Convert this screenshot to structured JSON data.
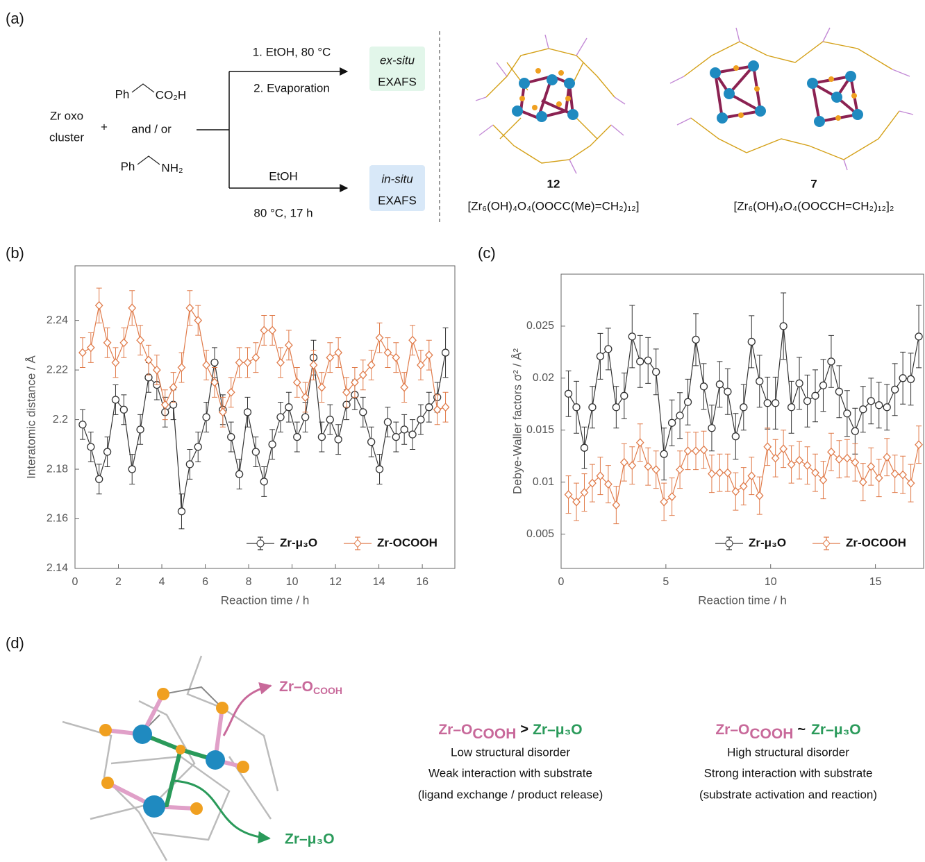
{
  "panel_a": {
    "label": "(a)",
    "cluster": [
      "Zr oxo",
      "cluster"
    ],
    "plus": "+",
    "acid": {
      "ph": "Ph",
      "group": "CO₂H"
    },
    "and_or": "and / or",
    "amine": {
      "ph": "Ph",
      "group": "NH₂"
    },
    "ex_situ": {
      "conditions": [
        "1. EtOH, 80 °C",
        "2. Evaporation"
      ],
      "method": "ex-situ",
      "technique": "EXAFS"
    },
    "in_situ": {
      "conditions": [
        "EtOH",
        "80 °C, 17 h"
      ],
      "method": "in-situ",
      "technique": "EXAFS"
    },
    "compounds": [
      {
        "number": "12",
        "formula": "[Zr₆(OH)₄O₄(OOCC(Me)=CH₂)₁₂]"
      },
      {
        "number": "7",
        "formula": "[Zr₆(OH)₄O₄(OOCCH=CH₂)₁₂]₂"
      }
    ]
  },
  "chart_data": [
    {
      "type": "line",
      "label": "(b)",
      "xlabel": "Reaction time / h",
      "ylabel": "Interatomic distance / Å",
      "xlim": [
        0,
        17.5
      ],
      "ylim": [
        2.14,
        2.262
      ],
      "xticks": [
        0,
        2,
        4,
        6,
        8,
        10,
        12,
        14,
        16
      ],
      "yticks": [
        2.14,
        2.16,
        2.18,
        2.2,
        2.22,
        2.24
      ],
      "legend": "lower right",
      "grid": false,
      "x": [
        0.35,
        0.73,
        1.11,
        1.49,
        1.87,
        2.25,
        2.63,
        3.01,
        3.39,
        3.77,
        4.15,
        4.53,
        4.91,
        5.29,
        5.67,
        6.05,
        6.43,
        6.81,
        7.19,
        7.57,
        7.95,
        8.33,
        8.71,
        9.09,
        9.47,
        9.85,
        10.23,
        10.61,
        10.99,
        11.37,
        11.75,
        12.13,
        12.51,
        12.89,
        13.27,
        13.65,
        14.03,
        14.41,
        14.79,
        15.17,
        15.55,
        15.93,
        16.31,
        16.69,
        17.07
      ],
      "series": [
        {
          "name": "Zr-μ₃O",
          "color": "#333333",
          "marker": "circle",
          "values": [
            2.198,
            2.189,
            2.176,
            2.187,
            2.208,
            2.204,
            2.18,
            2.196,
            2.217,
            2.214,
            2.203,
            2.206,
            2.163,
            2.182,
            2.189,
            2.201,
            2.223,
            2.204,
            2.193,
            2.178,
            2.203,
            2.187,
            2.175,
            2.19,
            2.201,
            2.205,
            2.193,
            2.201,
            2.225,
            2.193,
            2.2,
            2.192,
            2.206,
            2.21,
            2.203,
            2.191,
            2.18,
            2.199,
            2.193,
            2.196,
            2.194,
            2.2,
            2.205,
            2.209,
            2.227
          ],
          "errors": [
            0.006,
            0.006,
            0.006,
            0.006,
            0.006,
            0.006,
            0.006,
            0.006,
            0.006,
            0.006,
            0.006,
            0.006,
            0.007,
            0.006,
            0.006,
            0.006,
            0.006,
            0.006,
            0.006,
            0.006,
            0.006,
            0.006,
            0.006,
            0.006,
            0.006,
            0.006,
            0.006,
            0.006,
            0.007,
            0.006,
            0.006,
            0.006,
            0.006,
            0.006,
            0.006,
            0.006,
            0.006,
            0.006,
            0.006,
            0.006,
            0.006,
            0.006,
            0.006,
            0.006,
            0.01
          ]
        },
        {
          "name": "Zr-OCOOH",
          "color": "#e07b4a",
          "marker": "diamond",
          "values": [
            2.227,
            2.229,
            2.246,
            2.231,
            2.223,
            2.231,
            2.245,
            2.232,
            2.224,
            2.22,
            2.206,
            2.213,
            2.221,
            2.245,
            2.24,
            2.222,
            2.215,
            2.203,
            2.211,
            2.223,
            2.223,
            2.225,
            2.236,
            2.236,
            2.223,
            2.23,
            2.215,
            2.209,
            2.222,
            2.213,
            2.225,
            2.227,
            2.211,
            2.215,
            2.218,
            2.222,
            2.233,
            2.227,
            2.225,
            2.213,
            2.232,
            2.222,
            2.226,
            2.204,
            2.205
          ],
          "errors": [
            0.006,
            0.006,
            0.007,
            0.006,
            0.006,
            0.006,
            0.007,
            0.006,
            0.006,
            0.006,
            0.006,
            0.006,
            0.006,
            0.007,
            0.006,
            0.006,
            0.006,
            0.006,
            0.006,
            0.006,
            0.006,
            0.006,
            0.006,
            0.006,
            0.006,
            0.006,
            0.006,
            0.006,
            0.006,
            0.006,
            0.006,
            0.006,
            0.006,
            0.006,
            0.006,
            0.006,
            0.006,
            0.006,
            0.006,
            0.006,
            0.006,
            0.006,
            0.006,
            0.006,
            0.006
          ]
        }
      ]
    },
    {
      "type": "line",
      "label": "(c)",
      "xlabel": "Reaction time / h",
      "ylabel": "Debye-Waller factors σ² / Å²",
      "xlim": [
        0,
        17.3
      ],
      "ylim": [
        0.0017,
        0.03
      ],
      "xticks": [
        0,
        5,
        10,
        15
      ],
      "yticks": [
        0.005,
        0.01,
        0.015,
        0.02,
        0.025
      ],
      "legend": "lower right",
      "grid": false,
      "x": [
        0.35,
        0.73,
        1.11,
        1.49,
        1.87,
        2.25,
        2.63,
        3.01,
        3.39,
        3.77,
        4.15,
        4.53,
        4.91,
        5.29,
        5.67,
        6.05,
        6.43,
        6.81,
        7.19,
        7.57,
        7.95,
        8.33,
        8.71,
        9.09,
        9.47,
        9.85,
        10.23,
        10.61,
        10.99,
        11.37,
        11.75,
        12.13,
        12.51,
        12.89,
        13.27,
        13.65,
        14.03,
        14.41,
        14.79,
        15.17,
        15.55,
        15.93,
        16.31,
        16.69,
        17.07
      ],
      "series": [
        {
          "name": "Zr-μ₃O",
          "color": "#333333",
          "marker": "circle",
          "values": [
            0.0185,
            0.0172,
            0.0133,
            0.0172,
            0.0221,
            0.0228,
            0.0172,
            0.0183,
            0.024,
            0.0216,
            0.0217,
            0.0206,
            0.0127,
            0.0157,
            0.0164,
            0.0177,
            0.0237,
            0.0192,
            0.0152,
            0.0194,
            0.0187,
            0.0144,
            0.0172,
            0.0235,
            0.0197,
            0.0176,
            0.0176,
            0.025,
            0.0172,
            0.0195,
            0.0178,
            0.0183,
            0.0193,
            0.0216,
            0.0187,
            0.0166,
            0.0149,
            0.017,
            0.0178,
            0.0174,
            0.0172,
            0.0189,
            0.02,
            0.0199,
            0.024
          ],
          "errors": [
            0.0022,
            0.0025,
            0.002,
            0.002,
            0.0022,
            0.002,
            0.002,
            0.0022,
            0.003,
            0.0025,
            0.0022,
            0.0022,
            0.0025,
            0.0022,
            0.0022,
            0.0022,
            0.0025,
            0.0022,
            0.0022,
            0.0022,
            0.0022,
            0.0022,
            0.0022,
            0.0025,
            0.0025,
            0.0025,
            0.0025,
            0.0032,
            0.0025,
            0.0025,
            0.0025,
            0.0025,
            0.0025,
            0.0025,
            0.0025,
            0.0022,
            0.0022,
            0.0022,
            0.0022,
            0.0022,
            0.0022,
            0.0025,
            0.0025,
            0.0025,
            0.003
          ]
        },
        {
          "name": "Zr-OCOOH",
          "color": "#e07b4a",
          "marker": "diamond",
          "values": [
            0.0088,
            0.0081,
            0.009,
            0.0099,
            0.0106,
            0.0098,
            0.0078,
            0.0119,
            0.0116,
            0.0138,
            0.0115,
            0.0112,
            0.0081,
            0.0086,
            0.0112,
            0.013,
            0.013,
            0.0131,
            0.0108,
            0.0109,
            0.0109,
            0.0091,
            0.0096,
            0.0106,
            0.0087,
            0.0134,
            0.0123,
            0.0132,
            0.0117,
            0.0121,
            0.0116,
            0.0109,
            0.0102,
            0.0129,
            0.0122,
            0.0123,
            0.0119,
            0.01,
            0.0115,
            0.0104,
            0.0124,
            0.0108,
            0.0107,
            0.0099,
            0.0136
          ],
          "errors": [
            0.0018,
            0.0018,
            0.0018,
            0.0018,
            0.0018,
            0.0018,
            0.0018,
            0.0018,
            0.0018,
            0.0018,
            0.0018,
            0.0018,
            0.0018,
            0.0018,
            0.0018,
            0.0018,
            0.0018,
            0.0018,
            0.0018,
            0.0018,
            0.0018,
            0.0018,
            0.0018,
            0.0018,
            0.0018,
            0.0018,
            0.0018,
            0.0018,
            0.0018,
            0.0018,
            0.0018,
            0.0018,
            0.0018,
            0.0018,
            0.0018,
            0.0018,
            0.0018,
            0.0018,
            0.0018,
            0.0018,
            0.0018,
            0.0018,
            0.0018,
            0.0018,
            0.0018
          ]
        }
      ]
    }
  ],
  "panel_d": {
    "label": "(d)",
    "callouts": [
      {
        "text": "Zr–O",
        "sub": "COOH"
      },
      {
        "text": "Zr–μ₃O"
      }
    ],
    "comparisons": [
      {
        "left": {
          "text": "Zr–O",
          "sub": "COOH"
        },
        "relation": ">",
        "right": "Zr–μ₃O",
        "lines": [
          "Low structural disorder",
          "Weak interaction with substrate",
          "(ligand exchange / product release)"
        ]
      },
      {
        "left": {
          "text": "Zr–O",
          "sub": "COOH"
        },
        "relation": "~",
        "right": "Zr–μ₃O",
        "lines": [
          "High structural disorder",
          "Strong interaction with substrate",
          "(substrate activation and reaction)"
        ]
      }
    ]
  }
}
